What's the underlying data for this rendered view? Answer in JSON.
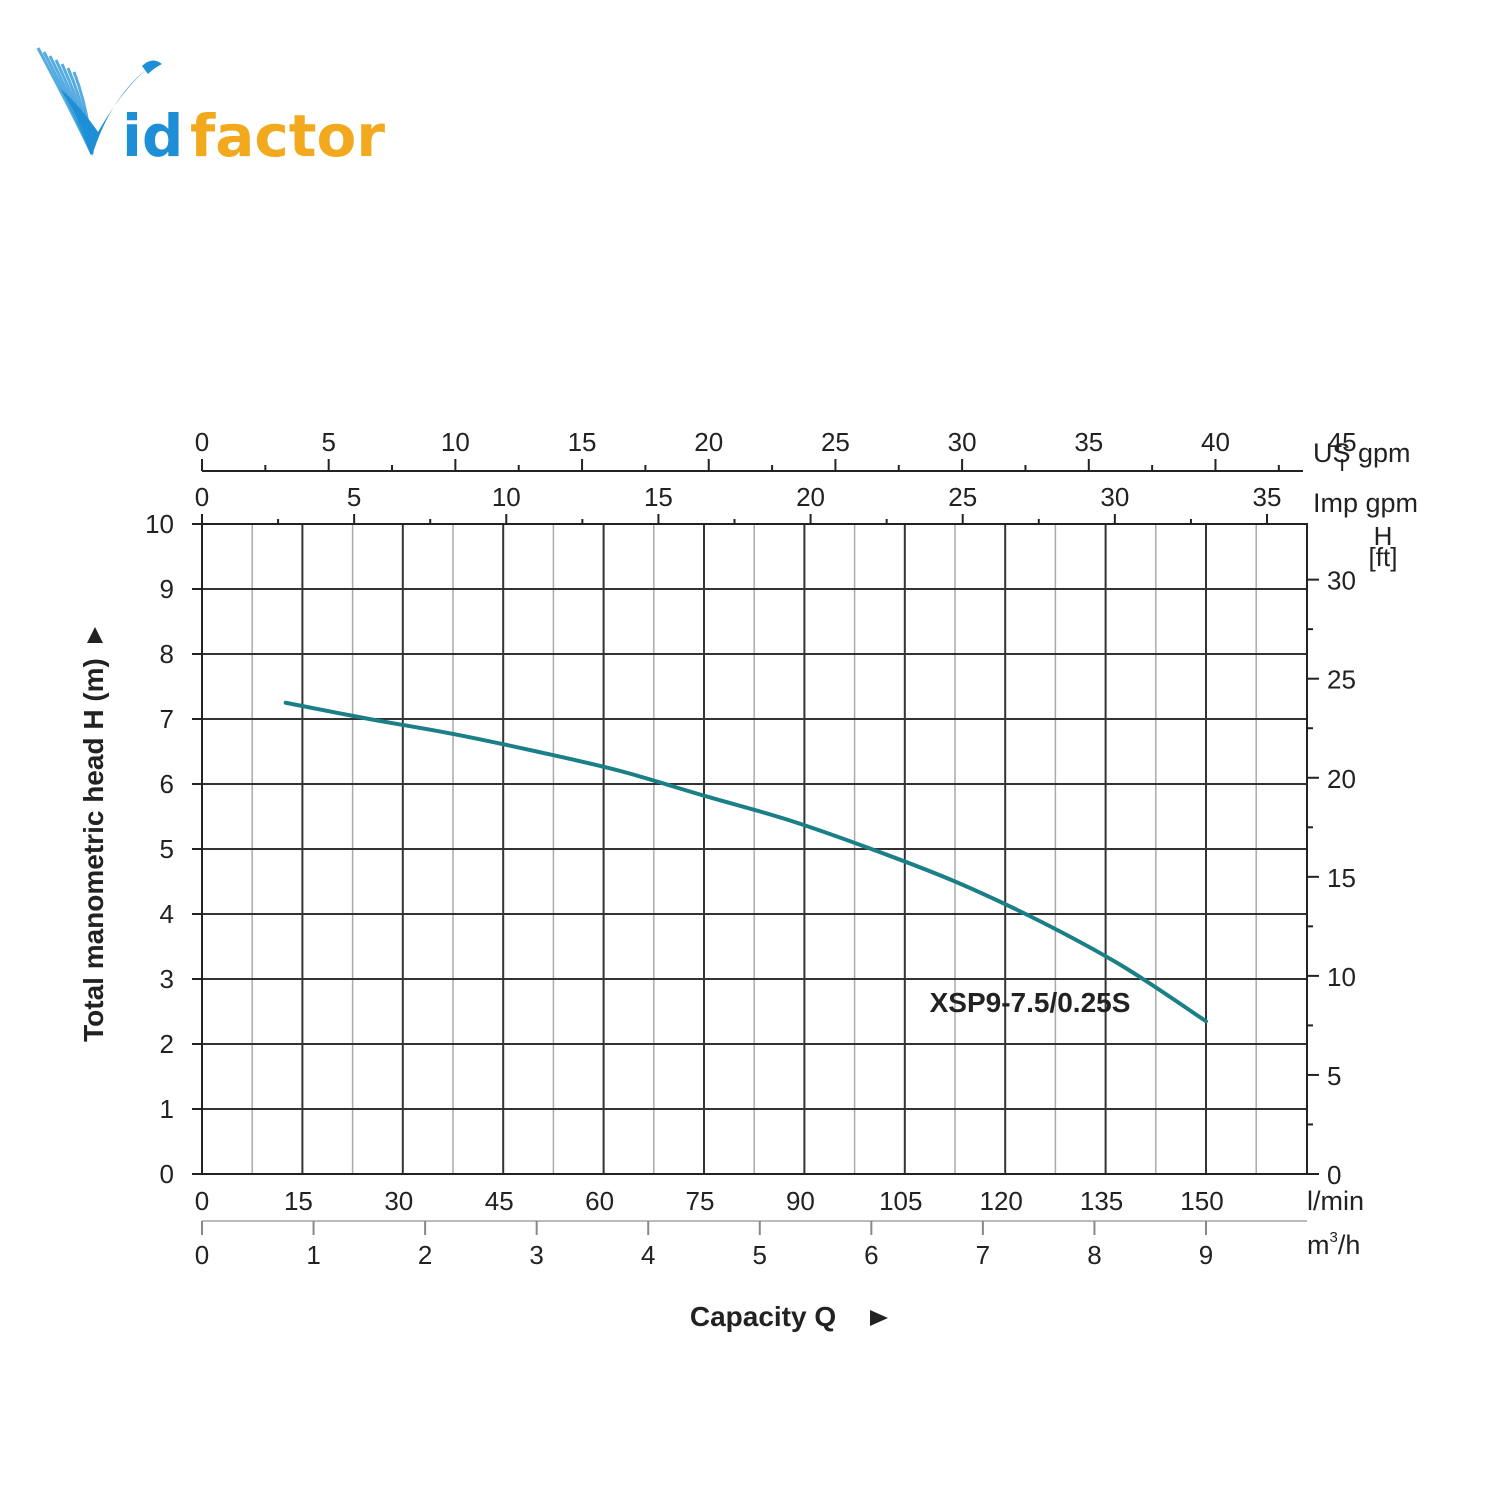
{
  "brand": {
    "name_part1": "id",
    "name_part2": "factor",
    "color_blue": "#1e8fd6",
    "color_orange": "#f2a91d",
    "icon": "bird-v-logo-icon"
  },
  "chart_data": {
    "type": "line",
    "title": "",
    "ylabel": "Total manometric head H (m)",
    "xlabel": "Capacity Q",
    "x_unit": "l/min",
    "y_unit": "m",
    "xlim": [
      0,
      165
    ],
    "ylim": [
      0,
      10
    ],
    "grid": true,
    "series": [
      {
        "name": "XSP9-7.5/0.25S",
        "color": "#1a7f86",
        "x": [
          12.5,
          25,
          37.5,
          50,
          62.5,
          75,
          87.5,
          100,
          112.5,
          125,
          137.5,
          150
        ],
        "y": [
          7.25,
          7.0,
          6.77,
          6.5,
          6.2,
          5.82,
          5.45,
          5.0,
          4.5,
          3.9,
          3.2,
          2.35
        ]
      }
    ],
    "axes": {
      "x_lmin": {
        "unit": "l/min",
        "ticks": [
          0,
          15,
          30,
          45,
          60,
          75,
          90,
          105,
          120,
          135,
          150
        ]
      },
      "x_m3h": {
        "unit": "m³/h",
        "unit_base": "m",
        "unit_sup": "3",
        "unit_tail": "/h",
        "ticks": [
          0,
          1,
          2,
          3,
          4,
          5,
          6,
          7,
          8,
          9
        ]
      },
      "x_usgpm": {
        "unit": "US gpm",
        "ticks": [
          0,
          5,
          10,
          15,
          20,
          25,
          30,
          35,
          40,
          45
        ]
      },
      "x_impgpm": {
        "unit": "Imp gpm",
        "ticks": [
          0,
          5,
          10,
          15,
          20,
          25,
          30,
          35
        ]
      },
      "y_m": {
        "unit": "m",
        "ticks": [
          0,
          1,
          2,
          3,
          4,
          5,
          6,
          7,
          8,
          9,
          10
        ]
      },
      "y_ft": {
        "unit_line1": "H",
        "unit_line2": "[ft]",
        "ticks": [
          0,
          5,
          10,
          15,
          20,
          25,
          30
        ]
      }
    }
  }
}
